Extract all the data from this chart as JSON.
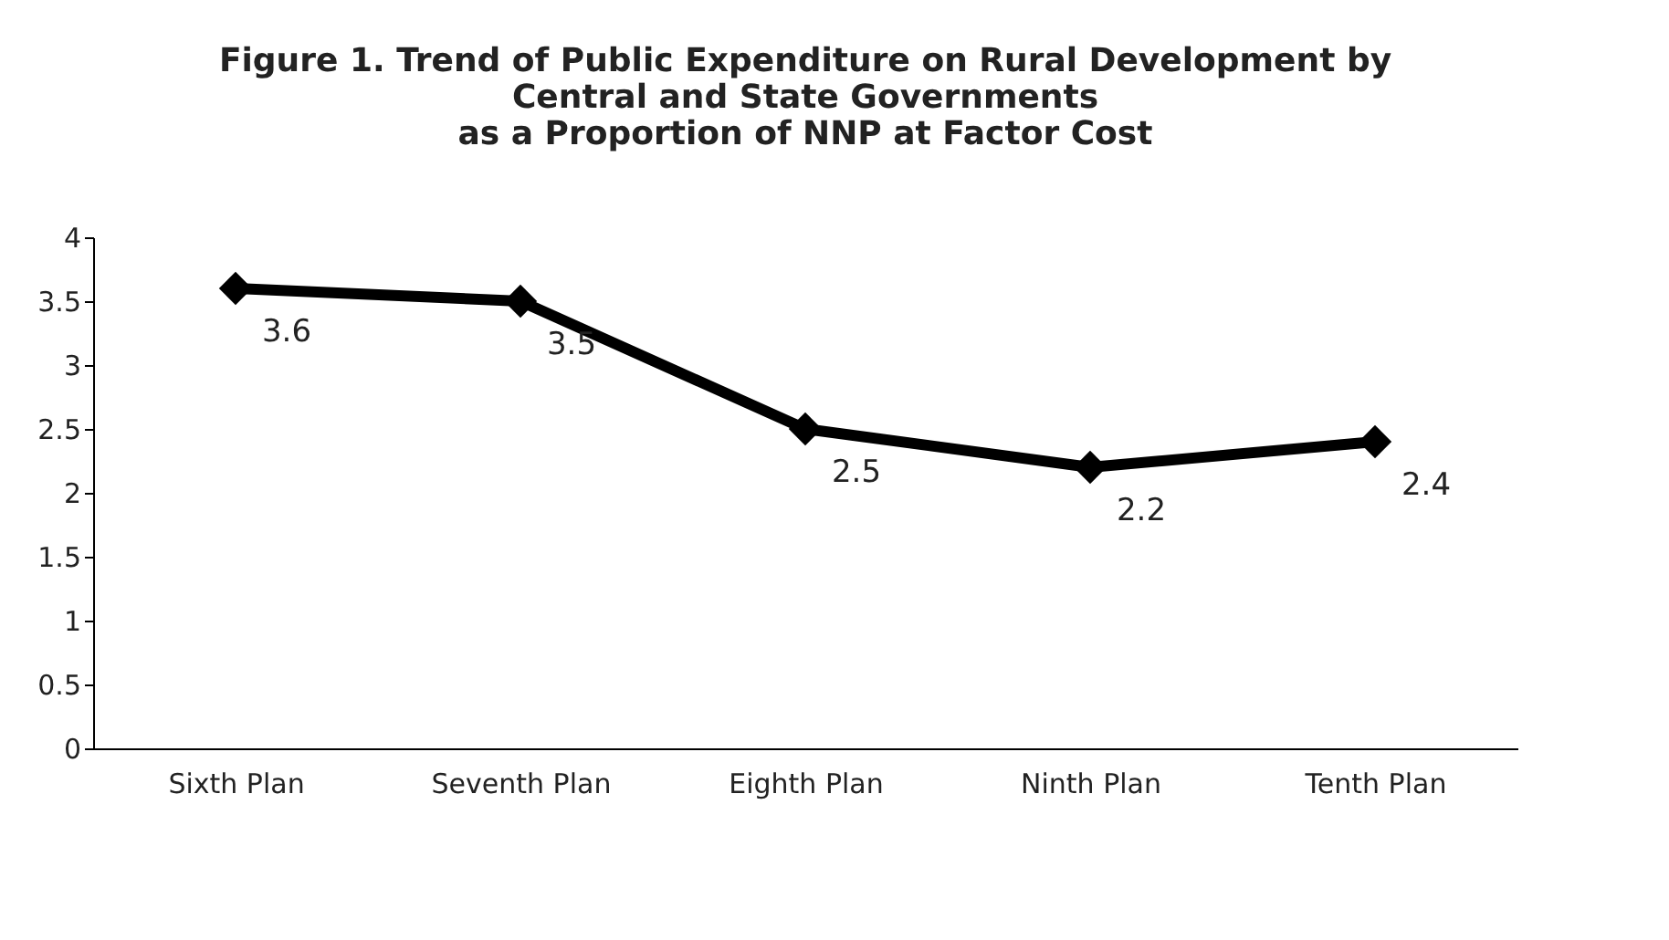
{
  "chart_data": {
    "type": "line",
    "title": [
      "Figure 1. Trend of Public Expenditure on Rural Development by",
      "Central and State Governments",
      "as a Proportion of NNP at Factor Cost"
    ],
    "categories": [
      "Sixth Plan",
      "Seventh Plan",
      "Eighth Plan",
      "Ninth Plan",
      "Tenth Plan"
    ],
    "series": [
      {
        "color": "#000000",
        "values": [
          3.6,
          3.5,
          2.5,
          2.2,
          2.4
        ]
      }
    ],
    "ylim": [
      0,
      4
    ],
    "yticks": [
      0,
      0.5,
      1,
      1.5,
      2,
      2.5,
      3,
      3.5,
      4
    ],
    "marker": "diamond",
    "line_style": "solid",
    "data_labels": true,
    "grid": false,
    "legend": false
  }
}
